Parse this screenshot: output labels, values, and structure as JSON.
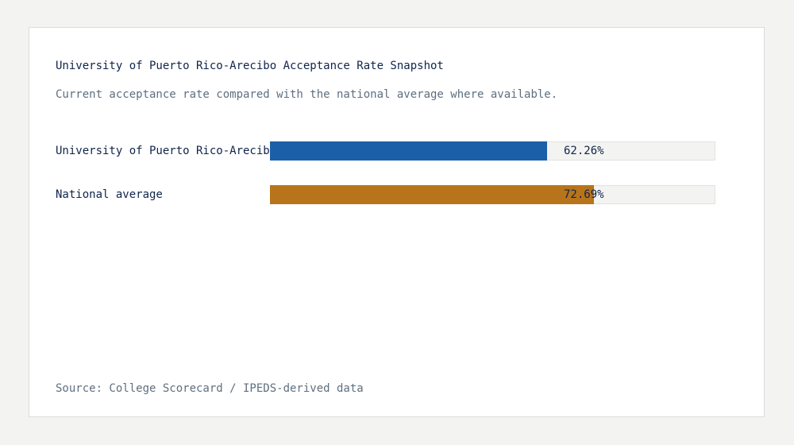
{
  "chart_data": {
    "type": "bar",
    "title": "University of Puerto Rico-Arecibo Acceptance Rate Snapshot",
    "subtitle": "Current acceptance rate compared with the national average where available.",
    "categories": [
      "University of Puerto Rico-Arecibo",
      "National average"
    ],
    "values": [
      62.26,
      72.69
    ],
    "value_labels": [
      "62.26%",
      "72.69%"
    ],
    "colors": [
      "#1a5fa8",
      "#b8741a"
    ],
    "ylim": [
      0,
      100
    ],
    "orientation": "horizontal",
    "source": "Source: College Scorecard / IPEDS-derived data"
  }
}
